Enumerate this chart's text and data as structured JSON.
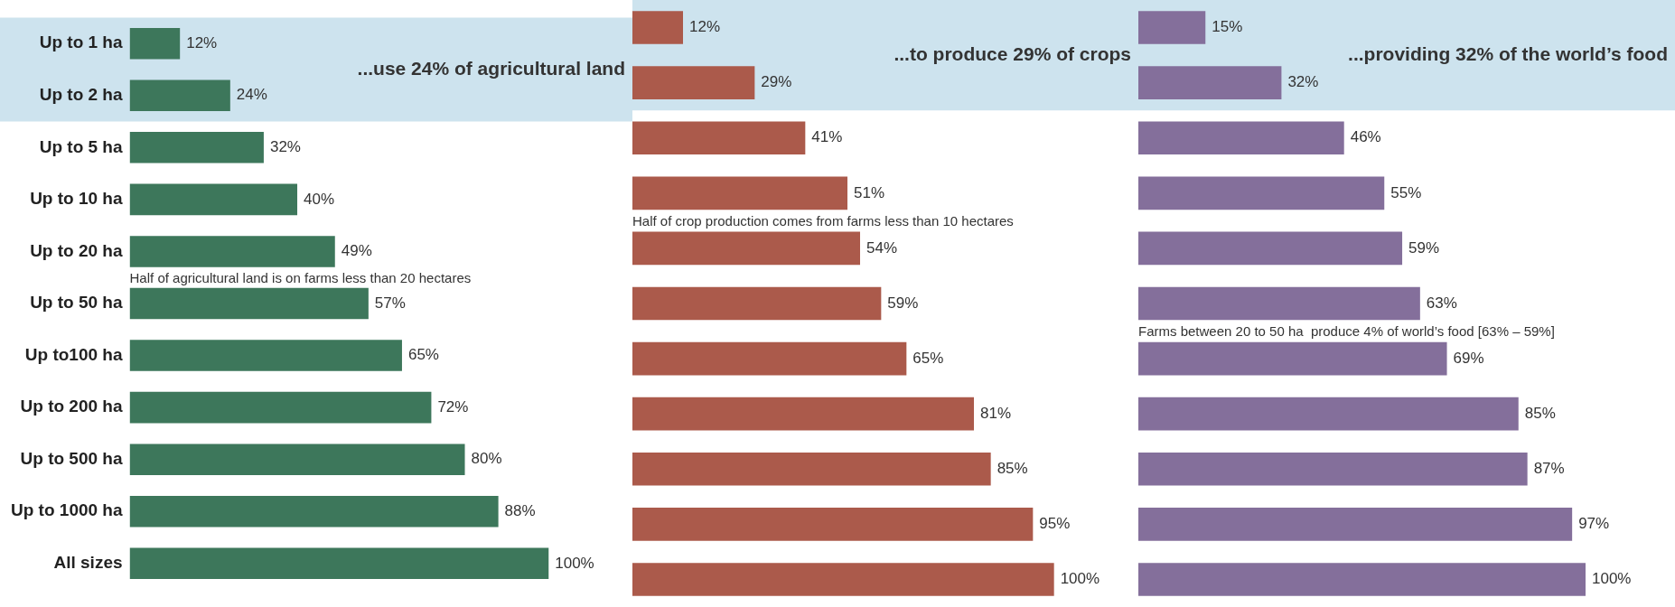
{
  "chart_data": [
    {
      "type": "bar",
      "orientation": "horizontal",
      "title": "...use 24% of agricultural land",
      "categories": [
        "Up to 1 ha",
        "Up to 2 ha",
        "Up to 5 ha",
        "Up to 10 ha",
        "Up to 20 ha",
        "Up to 50 ha",
        "Up to100 ha",
        "Up to 200 ha",
        "Up to 500 ha",
        "Up to 1000 ha",
        "All sizes"
      ],
      "values": [
        12,
        24,
        32,
        40,
        49,
        57,
        65,
        72,
        80,
        88,
        100
      ],
      "value_labels": [
        "12%",
        "24%",
        "32%",
        "40%",
        "49%",
        "57%",
        "65%",
        "72%",
        "80%",
        "88%",
        "100%"
      ],
      "color": "#3d775b",
      "tick_labels": "y",
      "grid": false,
      "legend": false,
      "bands": [
        {
          "axis": "y",
          "from": "Up to 1 ha",
          "to": "Up to 2 ha",
          "color": "#cde3ee"
        }
      ],
      "annotations": [
        "Half of agricultural land is on farms less than 20 hectares"
      ]
    },
    {
      "type": "bar",
      "orientation": "horizontal",
      "title": "...to produce 29% of crops",
      "categories": [
        "Up to 1 ha",
        "Up to 2 ha",
        "Up to 5 ha",
        "Up to 10 ha",
        "Up to 20 ha",
        "Up to 50 ha",
        "Up to100 ha",
        "Up to 200 ha",
        "Up to 500 ha",
        "Up to 1000 ha",
        "All sizes"
      ],
      "values": [
        12,
        29,
        41,
        51,
        54,
        59,
        65,
        81,
        85,
        95,
        100
      ],
      "value_labels": [
        "12%",
        "29%",
        "41%",
        "51%",
        "54%",
        "59%",
        "65%",
        "81%",
        "85%",
        "95%",
        "100%"
      ],
      "color": "#ab5a4b",
      "tick_labels": false,
      "grid": false,
      "legend": false,
      "bands": [
        {
          "axis": "y",
          "from": "Up to 1 ha",
          "to": "Up to 2 ha",
          "color": "#cde3ee"
        }
      ],
      "annotations": [
        "Half of crop production comes from farms less than 10 hectares"
      ]
    },
    {
      "type": "bar",
      "orientation": "horizontal",
      "title": "...providing 32% of the world’s food",
      "categories": [
        "Up to 1 ha",
        "Up to 2 ha",
        "Up to 5 ha",
        "Up to 10 ha",
        "Up to 20 ha",
        "Up to 50 ha",
        "Up to100 ha",
        "Up to 200 ha",
        "Up to 500 ha",
        "Up to 1000 ha",
        "All sizes"
      ],
      "values": [
        15,
        32,
        46,
        55,
        59,
        63,
        69,
        85,
        87,
        97,
        100
      ],
      "value_labels": [
        "15%",
        "32%",
        "46%",
        "55%",
        "59%",
        "63%",
        "69%",
        "85%",
        "87%",
        "97%",
        "100%"
      ],
      "color": "#846f9b",
      "tick_labels": false,
      "grid": false,
      "legend": false,
      "bands": [
        {
          "axis": "y",
          "from": "Up to 1 ha",
          "to": "Up to 2 ha",
          "color": "#cde3ee"
        }
      ],
      "annotations": [
        "Farms between 20 to 50 ha  produce 4% of world’s food [63% – 59%]"
      ]
    }
  ]
}
